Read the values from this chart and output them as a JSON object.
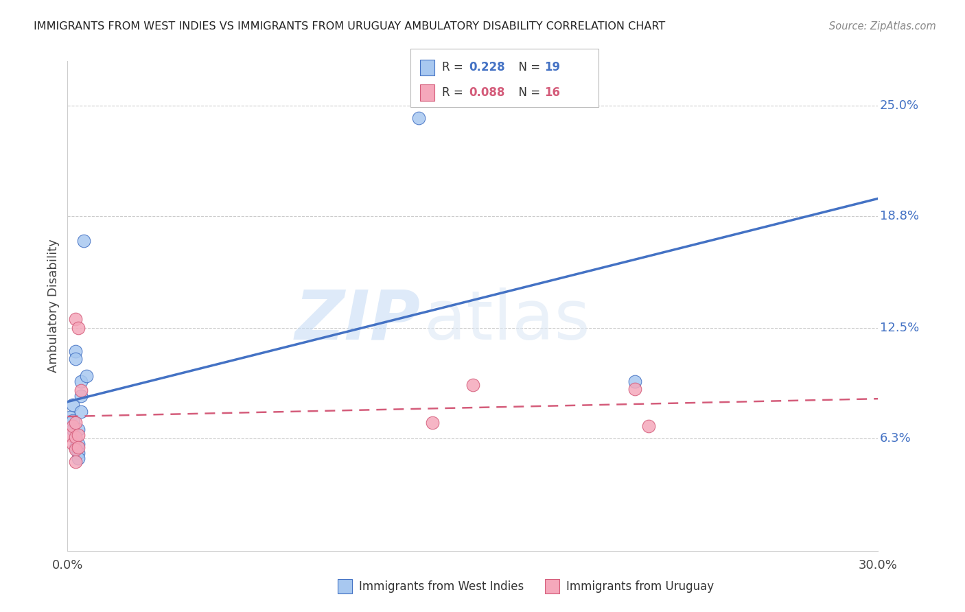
{
  "title": "IMMIGRANTS FROM WEST INDIES VS IMMIGRANTS FROM URUGUAY AMBULATORY DISABILITY CORRELATION CHART",
  "source": "Source: ZipAtlas.com",
  "ylabel": "Ambulatory Disability",
  "x_min": 0.0,
  "x_max": 0.3,
  "y_min": 0.0,
  "y_max": 0.275,
  "y_tick_labels_right": [
    "25.0%",
    "18.8%",
    "12.5%",
    "6.3%"
  ],
  "y_tick_values_right": [
    0.25,
    0.188,
    0.125,
    0.063
  ],
  "legend_R1": "0.228",
  "legend_N1": "19",
  "legend_R2": "0.088",
  "legend_N2": "16",
  "legend_label1": "Immigrants from West Indies",
  "legend_label2": "Immigrants from Uruguay",
  "color_blue": "#A8C8F0",
  "color_pink": "#F5A8BB",
  "color_blue_line": "#4472C4",
  "color_pink_line": "#D45C7A",
  "watermark_zip": "ZIP",
  "watermark_atlas": "atlas",
  "west_indies_x": [
    0.001,
    0.002,
    0.002,
    0.002,
    0.003,
    0.003,
    0.003,
    0.003,
    0.004,
    0.004,
    0.004,
    0.004,
    0.005,
    0.005,
    0.005,
    0.006,
    0.007,
    0.13,
    0.21
  ],
  "west_indies_y": [
    0.075,
    0.082,
    0.068,
    0.073,
    0.112,
    0.108,
    0.058,
    0.063,
    0.068,
    0.06,
    0.055,
    0.052,
    0.095,
    0.087,
    0.078,
    0.174,
    0.098,
    0.243,
    0.095
  ],
  "uruguay_x": [
    0.001,
    0.002,
    0.002,
    0.003,
    0.003,
    0.003,
    0.003,
    0.003,
    0.004,
    0.004,
    0.004,
    0.005,
    0.135,
    0.15,
    0.21,
    0.215
  ],
  "uruguay_y": [
    0.065,
    0.07,
    0.06,
    0.13,
    0.072,
    0.064,
    0.057,
    0.05,
    0.065,
    0.058,
    0.125,
    0.09,
    0.072,
    0.093,
    0.091,
    0.07
  ]
}
